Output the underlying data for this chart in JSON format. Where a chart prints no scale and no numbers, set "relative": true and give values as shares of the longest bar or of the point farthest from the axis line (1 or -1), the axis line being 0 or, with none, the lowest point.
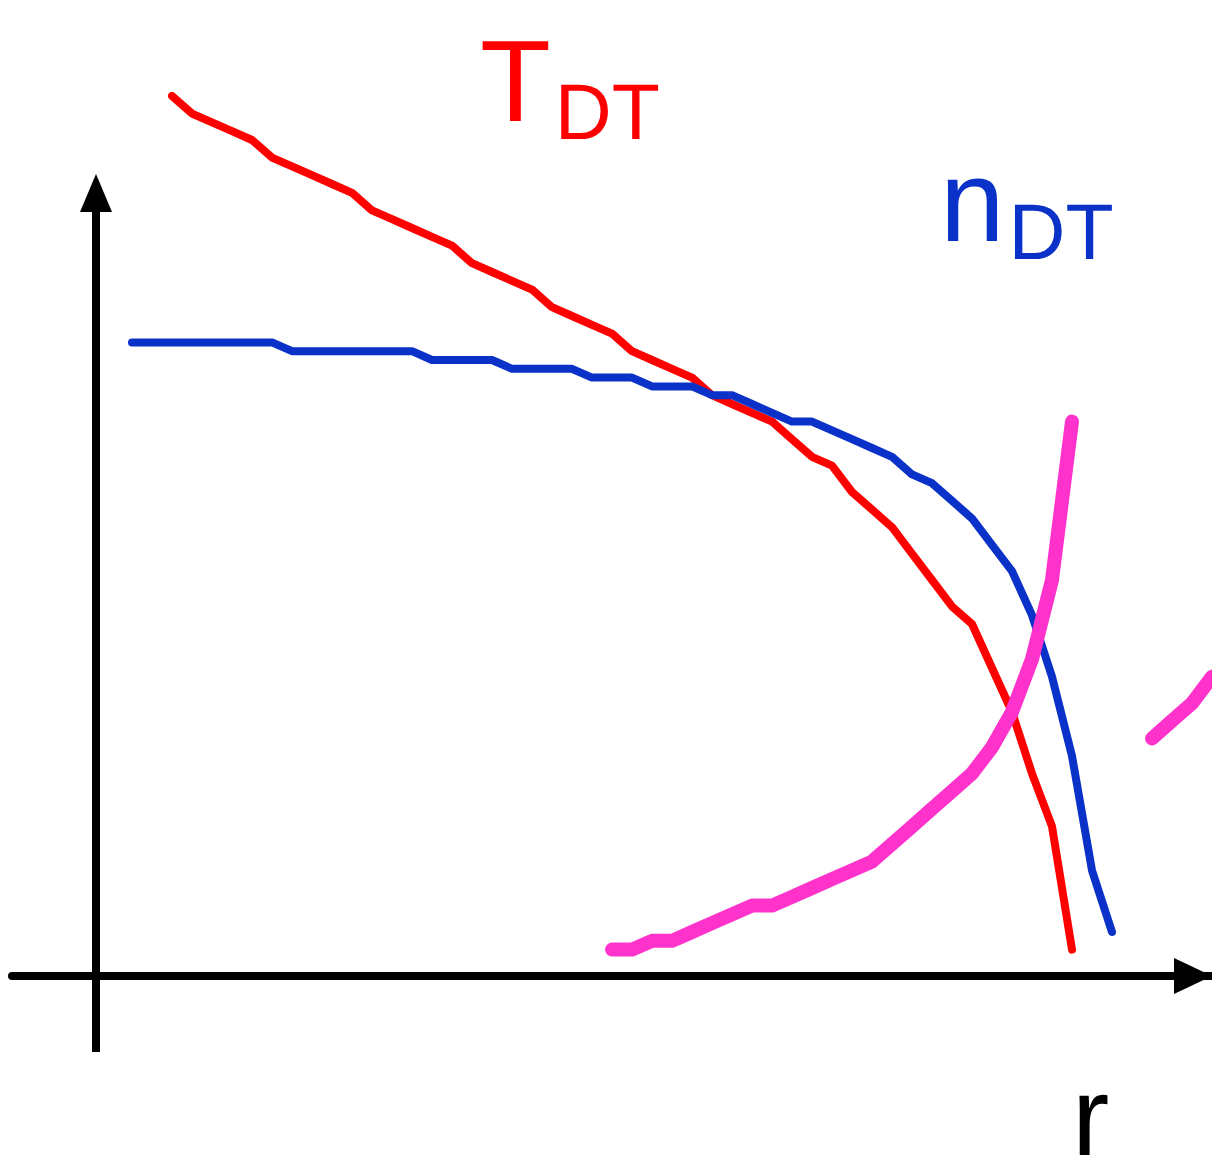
{
  "chart_data": {
    "type": "line",
    "relative": true,
    "xlabel": "r",
    "grid": false,
    "legend": false,
    "marker": "none",
    "line_style": "solid",
    "categories": [
      null,
      null,
      null,
      null,
      null,
      null,
      null,
      null,
      null,
      null,
      null,
      null,
      null,
      null,
      null,
      null,
      null,
      null,
      null,
      null,
      null,
      null,
      null,
      null,
      null,
      null,
      null,
      null,
      null,
      null,
      null,
      null,
      null,
      null,
      null,
      null,
      null,
      null,
      null,
      null,
      null,
      null,
      null,
      null,
      null,
      null,
      null,
      null,
      null,
      null,
      null,
      null,
      null,
      null,
      null,
      null,
      null,
      null,
      null,
      null,
      null
    ],
    "series": [
      {
        "name": "T$_{DT}$",
        "color": "#ff0000",
        "values": [
          null,
          null,
          null,
          null,
          null,
          null,
          null,
          null,
          1.0,
          0.98,
          0.97,
          0.96,
          0.95,
          0.93,
          0.92,
          0.91,
          0.9,
          0.89,
          0.87,
          0.86,
          0.85,
          0.84,
          0.83,
          0.81,
          0.8,
          0.79,
          0.78,
          0.76,
          0.75,
          0.74,
          0.73,
          0.71,
          0.7,
          0.69,
          0.68,
          0.66,
          0.65,
          0.64,
          0.63,
          0.61,
          0.59,
          0.58,
          0.55,
          0.53,
          0.51,
          0.48,
          0.45,
          0.42,
          0.4,
          0.35,
          0.3,
          0.23,
          0.17,
          0.03,
          null,
          null,
          null,
          null,
          null,
          null,
          null
        ]
      },
      {
        "name": "n$_{DT}$",
        "color": "#0a32c8",
        "values": [
          null,
          null,
          null,
          null,
          null,
          null,
          0.72,
          0.72,
          0.72,
          0.72,
          0.72,
          0.72,
          0.72,
          0.72,
          0.71,
          0.71,
          0.71,
          0.71,
          0.71,
          0.71,
          0.71,
          0.7,
          0.7,
          0.7,
          0.7,
          0.69,
          0.69,
          0.69,
          0.69,
          0.68,
          0.68,
          0.68,
          0.67,
          0.67,
          0.67,
          0.66,
          0.66,
          0.65,
          0.64,
          0.63,
          0.63,
          0.62,
          0.61,
          0.6,
          0.59,
          0.57,
          0.56,
          0.54,
          0.52,
          0.49,
          0.46,
          0.41,
          0.34,
          0.25,
          0.12,
          0.05,
          null,
          null,
          null,
          null,
          null
        ]
      },
      {
        "color": "#ff33cc",
        "values": [
          null,
          null,
          null,
          null,
          null,
          null,
          null,
          null,
          null,
          null,
          null,
          null,
          null,
          null,
          null,
          null,
          null,
          null,
          null,
          null,
          null,
          null,
          null,
          null,
          null,
          null,
          null,
          null,
          null,
          null,
          0.03,
          0.03,
          0.04,
          0.04,
          0.05,
          0.06,
          0.07,
          0.08,
          0.08,
          0.09,
          0.1,
          0.11,
          0.12,
          0.13,
          0.15,
          0.17,
          0.19,
          0.21,
          0.23,
          0.26,
          0.3,
          0.36,
          0.45,
          0.63,
          null,
          null,
          null,
          null,
          null,
          null,
          null
        ]
      },
      {
        "color": "#ff33cc",
        "values": [
          null,
          null,
          null,
          null,
          null,
          null,
          null,
          null,
          null,
          null,
          null,
          null,
          null,
          null,
          null,
          null,
          null,
          null,
          null,
          null,
          null,
          null,
          null,
          null,
          null,
          null,
          null,
          null,
          null,
          null,
          null,
          null,
          null,
          null,
          null,
          null,
          null,
          null,
          null,
          null,
          null,
          null,
          null,
          null,
          null,
          null,
          null,
          null,
          null,
          null,
          null,
          null,
          null,
          null,
          null,
          null,
          null,
          0.27,
          0.29,
          0.31,
          0.34
        ]
      }
    ]
  }
}
